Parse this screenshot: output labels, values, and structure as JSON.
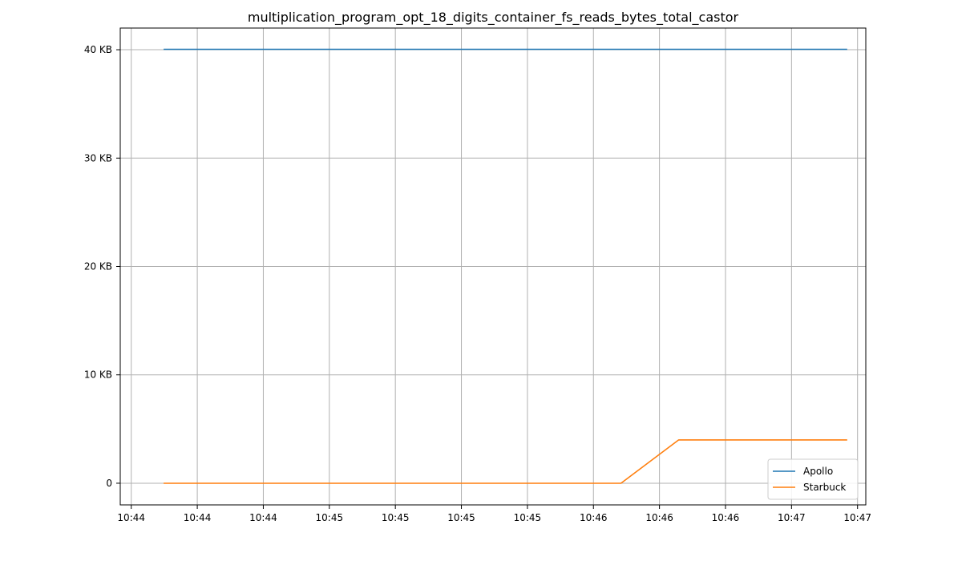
{
  "chart_data": {
    "type": "line",
    "title": "multiplication_program_opt_18_digits_container_fs_reads_bytes_total_castor",
    "xlabel": "",
    "ylabel": "",
    "x_unit": "seconds",
    "x_ticks": [
      {
        "t": 0,
        "label": "10:44"
      },
      {
        "t": 12,
        "label": "10:44"
      },
      {
        "t": 24,
        "label": "10:44"
      },
      {
        "t": 36,
        "label": "10:45"
      },
      {
        "t": 48,
        "label": "10:45"
      },
      {
        "t": 60,
        "label": "10:45"
      },
      {
        "t": 72,
        "label": "10:45"
      },
      {
        "t": 84,
        "label": "10:46"
      },
      {
        "t": 96,
        "label": "10:46"
      },
      {
        "t": 108,
        "label": "10:46"
      },
      {
        "t": 120,
        "label": "10:47"
      },
      {
        "t": 132,
        "label": "10:47"
      }
    ],
    "y_ticks": [
      {
        "v": 0,
        "label": "0"
      },
      {
        "v": 10240,
        "label": "10 KB"
      },
      {
        "v": 20480,
        "label": "20 KB"
      },
      {
        "v": 30720,
        "label": "30 KB"
      },
      {
        "v": 40960,
        "label": "40 KB"
      }
    ],
    "xlim": [
      -2,
      133.5
    ],
    "ylim": [
      -2048,
      43008
    ],
    "grid": true,
    "legend_position": "lower-right",
    "series": [
      {
        "name": "Apollo",
        "color": "#1f77b4",
        "points": [
          [
            6,
            41000
          ],
          [
            130,
            41000
          ]
        ]
      },
      {
        "name": "Starbuck",
        "color": "#ff7f0e",
        "points": [
          [
            6,
            0
          ],
          [
            89,
            0
          ],
          [
            99.5,
            4096
          ],
          [
            130,
            4096
          ]
        ]
      }
    ]
  }
}
